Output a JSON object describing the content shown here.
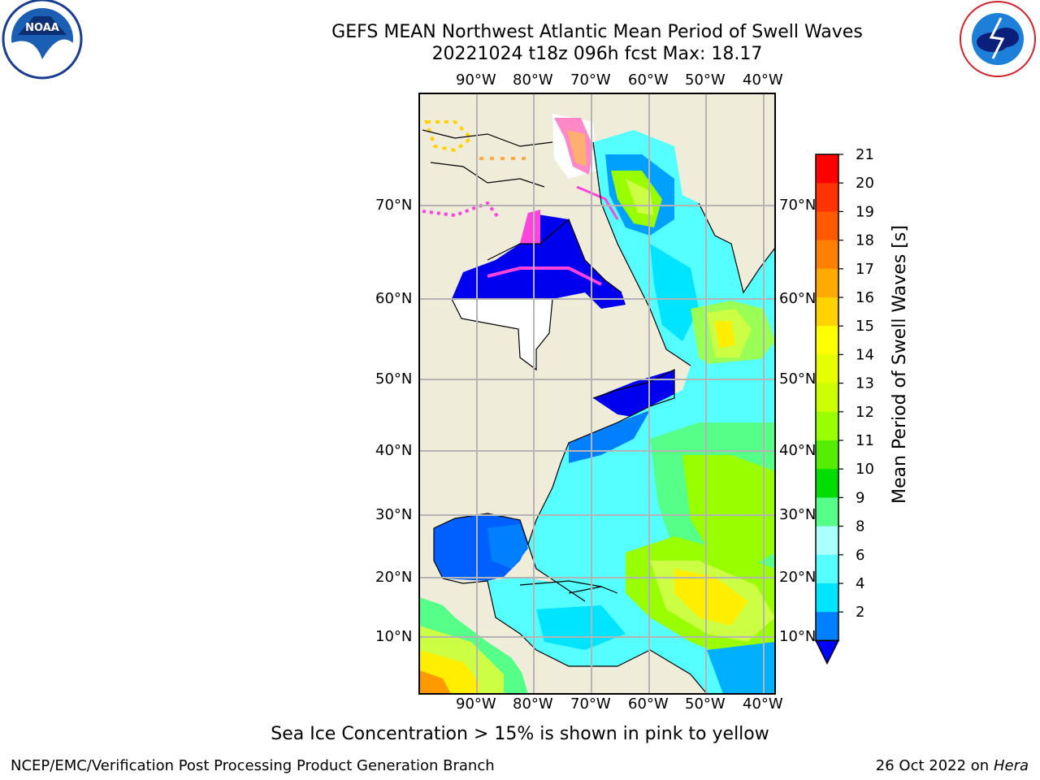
{
  "title": "GEFS MEAN Northwest Atlantic Mean Period of Swell Waves",
  "subtitle": "20221024 t18z 096h fcst   Max: 18.17",
  "lon_labels": [
    "90°W",
    "80°W",
    "70°W",
    "60°W",
    "50°W",
    "40°W"
  ],
  "lat_labels": [
    "70°N",
    "60°N",
    "50°N",
    "40°N",
    "30°N",
    "20°N",
    "10°N"
  ],
  "colorbar": {
    "label": "Mean Period of Swell Waves [s]",
    "ticks": [
      "21",
      "20",
      "19",
      "18",
      "17",
      "16",
      "15",
      "14",
      "13",
      "12",
      "11",
      "10",
      "9",
      "8",
      "6",
      "4",
      "2"
    ],
    "colors": [
      "#ff0000",
      "#ff3300",
      "#ff5a00",
      "#ff8000",
      "#ffaa00",
      "#ffd200",
      "#ffff00",
      "#e6ff00",
      "#ccff00",
      "#99ff00",
      "#55ee00",
      "#00dd00",
      "#55ff88",
      "#aaffff",
      "#55ffff",
      "#00e5ff",
      "#0080ff"
    ],
    "extend_color": "#0000ff"
  },
  "note": "Sea Ice Concentration > 15% is shown in pink to yellow",
  "footer_left": "NCEP/EMC/Verification Post Processing Product Generation Branch",
  "footer_right_date": "26 Oct 2022 on",
  "footer_right_machine": "Hera",
  "logos": {
    "left": "noaa-logo",
    "right": "national-weather-service-logo"
  }
}
